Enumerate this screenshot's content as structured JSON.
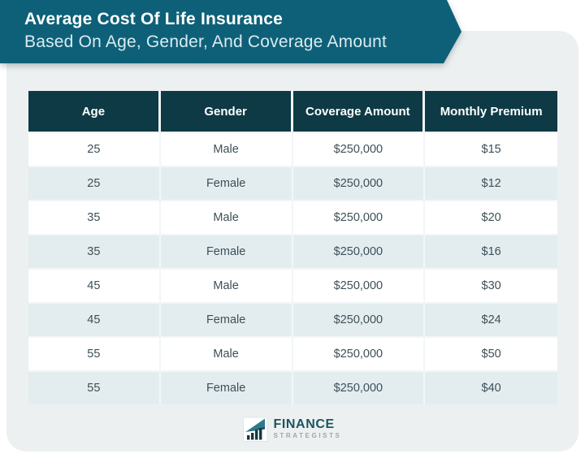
{
  "banner": {
    "title": "Average Cost Of Life Insurance",
    "subtitle": "Based On Age, Gender, And Coverage Amount"
  },
  "table": {
    "headers": [
      "Age",
      "Gender",
      "Coverage Amount",
      "Monthly Premium"
    ],
    "rows": [
      [
        "25",
        "Male",
        "$250,000",
        "$15"
      ],
      [
        "25",
        "Female",
        "$250,000",
        "$12"
      ],
      [
        "35",
        "Male",
        "$250,000",
        "$20"
      ],
      [
        "35",
        "Female",
        "$250,000",
        "$16"
      ],
      [
        "45",
        "Male",
        "$250,000",
        "$30"
      ],
      [
        "45",
        "Female",
        "$250,000",
        "$24"
      ],
      [
        "55",
        "Male",
        "$250,000",
        "$50"
      ],
      [
        "55",
        "Female",
        "$250,000",
        "$40"
      ]
    ]
  },
  "footer": {
    "brand_primary": "FINANCE",
    "brand_secondary": "STRATEGISTS",
    "logo_icon": "growth-bars-arrow-icon"
  },
  "colors": {
    "banner_teal": "#0e6078",
    "header_navy": "#0d3a44",
    "row_alt_blue": "#e3edf0",
    "card_gray": "#edf0f0",
    "body_text": "#3e4f57",
    "brand_text": "#1c5562",
    "brand_sub_text": "#9ba8ab"
  },
  "chart_data": {
    "type": "table",
    "title": "Average Cost Of Life Insurance Based On Age, Gender, And Coverage Amount",
    "columns": [
      "Age",
      "Gender",
      "Coverage Amount",
      "Monthly Premium"
    ],
    "rows": [
      {
        "age": 25,
        "gender": "Male",
        "coverage_amount": "$250,000",
        "monthly_premium": "$15"
      },
      {
        "age": 25,
        "gender": "Female",
        "coverage_amount": "$250,000",
        "monthly_premium": "$12"
      },
      {
        "age": 35,
        "gender": "Male",
        "coverage_amount": "$250,000",
        "monthly_premium": "$20"
      },
      {
        "age": 35,
        "gender": "Female",
        "coverage_amount": "$250,000",
        "monthly_premium": "$16"
      },
      {
        "age": 45,
        "gender": "Male",
        "coverage_amount": "$250,000",
        "monthly_premium": "$30"
      },
      {
        "age": 45,
        "gender": "Female",
        "coverage_amount": "$250,000",
        "monthly_premium": "$24"
      },
      {
        "age": 55,
        "gender": "Male",
        "coverage_amount": "$250,000",
        "monthly_premium": "$50"
      },
      {
        "age": 55,
        "gender": "Female",
        "coverage_amount": "$250,000",
        "monthly_premium": "$40"
      }
    ]
  }
}
